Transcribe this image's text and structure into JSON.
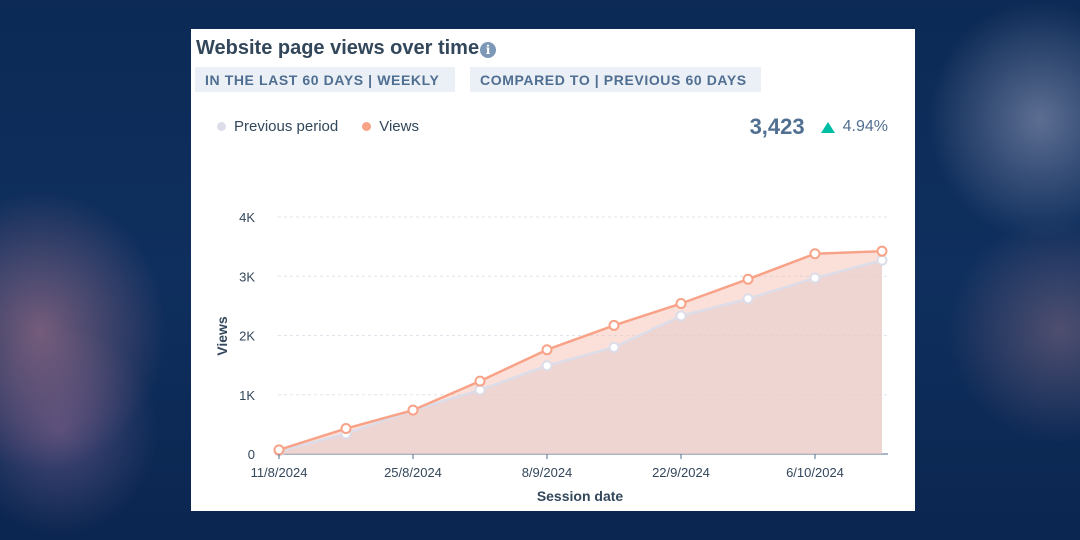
{
  "filters": {
    "date_range": "IN THE LAST 60 DAYS | WEEKLY",
    "comparison": "COMPARED TO | PREVIOUS 60 DAYS"
  },
  "summary": {
    "total": "3,423",
    "change": "4.94%",
    "trend": "up",
    "trend_color": "#00bda5"
  },
  "chart_data": {
    "type": "line",
    "title": "Website page views over time",
    "xlabel": "Session date",
    "ylabel": "Views",
    "x_tick_labels": [
      "11/8/2024",
      "25/8/2024",
      "8/9/2024",
      "22/9/2024",
      "6/10/2024"
    ],
    "y_tick_labels": [
      "0",
      "1K",
      "2K",
      "3K",
      "4K"
    ],
    "y_ticks": [
      0,
      1000,
      2000,
      3000,
      4000
    ],
    "ylim": [
      0,
      4000
    ],
    "x": [
      "11/8/2024",
      "18/8/2024",
      "25/8/2024",
      "1/9/2024",
      "8/9/2024",
      "15/9/2024",
      "22/9/2024",
      "29/9/2024",
      "6/10/2024",
      "13/10/2024"
    ],
    "series": [
      {
        "name": "Previous period",
        "color": "#dcdde9",
        "values": [
          50,
          340,
          740,
          1080,
          1490,
          1800,
          2330,
          2620,
          2970,
          3270
        ]
      },
      {
        "name": "Views",
        "color": "#f8a287",
        "values": [
          70,
          430,
          740,
          1230,
          1760,
          2170,
          2540,
          2950,
          3380,
          3423
        ]
      }
    ],
    "grid": true,
    "legend_position": "top-left"
  }
}
